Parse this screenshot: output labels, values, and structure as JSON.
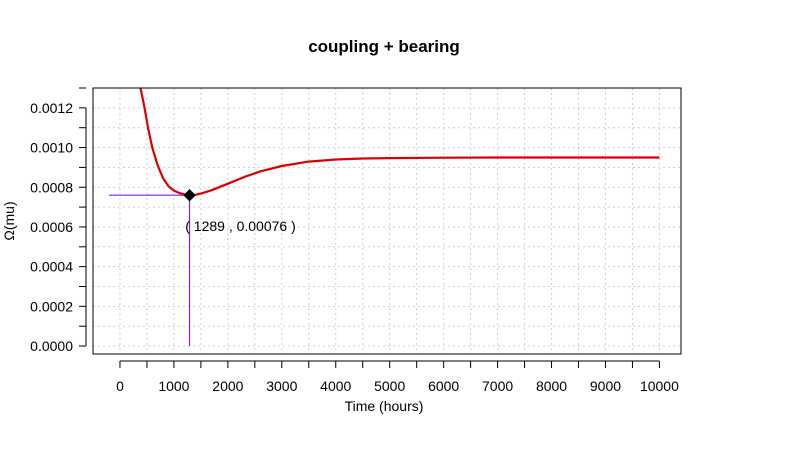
{
  "chart_data": {
    "type": "line",
    "title": "coupling + bearing",
    "xlabel": "Time (hours)",
    "ylabel": "Ω(mu)",
    "xlim": [
      -500,
      10400
    ],
    "ylim": [
      -4e-05,
      0.0013
    ],
    "x_ticks": [
      0,
      1000,
      2000,
      3000,
      4000,
      5000,
      6000,
      7000,
      8000,
      9000,
      10000
    ],
    "x_tick_labels": [
      "0",
      "1000",
      "2000",
      "3000",
      "4000",
      "5000",
      "6000",
      "7000",
      "8000",
      "9000",
      "10000"
    ],
    "y_ticks": [
      0.0,
      0.0002,
      0.0004,
      0.0006,
      0.0008,
      0.001,
      0.0012
    ],
    "y_tick_labels": [
      "0.0000",
      "0.0002",
      "0.0004",
      "0.0006",
      "0.0008",
      "0.0010",
      "0.0012"
    ],
    "grid": true,
    "series": [
      {
        "color": "#dd0000",
        "x": [
          380,
          450,
          520,
          600,
          700,
          800,
          900,
          1000,
          1100,
          1200,
          1289,
          1400,
          1500,
          1700,
          2000,
          2300,
          2600,
          3000,
          3500,
          4000,
          4500,
          5000,
          6000,
          7000,
          8000,
          9000,
          10000
        ],
        "y": [
          0.0013,
          0.00121,
          0.0011,
          0.001,
          0.00091,
          0.000845,
          0.000805,
          0.000783,
          0.000771,
          0.000764,
          0.00076,
          0.000762,
          0.000768,
          0.000785,
          0.000818,
          0.000851,
          0.00088,
          0.000907,
          0.000929,
          0.00094,
          0.000945,
          0.000947,
          0.000949,
          0.00095,
          0.00095,
          0.00095,
          0.00095
        ]
      }
    ],
    "marked_point": {
      "x": 1289,
      "y": 0.00076,
      "label": "( 1289 , 0.00076 )",
      "guide_color": "#8a1fd0",
      "marker": "diamond"
    }
  }
}
